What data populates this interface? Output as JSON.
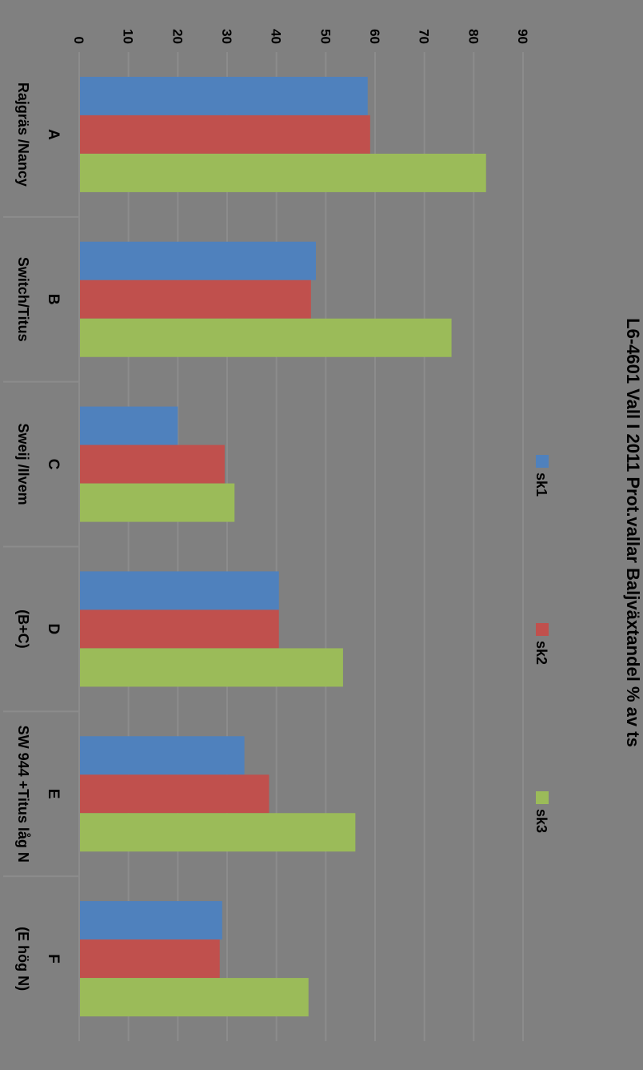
{
  "chart_data": {
    "type": "bar",
    "orientation": "rotated-90-clockwise",
    "title": "L6-4601  Vall I 2011 Prot.vallar Baljväxtandel % av ts",
    "xlabel": "",
    "ylabel": "",
    "ylim": [
      0,
      90
    ],
    "yticks": [
      0,
      10,
      20,
      30,
      40,
      50,
      60,
      70,
      80,
      90
    ],
    "grid": true,
    "legend_position": "top",
    "categories": [
      {
        "letter": "A",
        "label": "Rajgräs /Nancy"
      },
      {
        "letter": "B",
        "label": "Switch/Titus"
      },
      {
        "letter": "C",
        "label": "Sweij /Ilvem"
      },
      {
        "letter": "D",
        "label": "(B+C)"
      },
      {
        "letter": "E",
        "label": "SW 944 +Titus låg N"
      },
      {
        "letter": "F",
        "label": "(E hög N)"
      }
    ],
    "series": [
      {
        "name": "sk1",
        "color": "#4f81bd",
        "values": [
          58.5,
          48,
          20,
          40.5,
          33.5,
          29
        ]
      },
      {
        "name": "sk2",
        "color": "#c0504d",
        "values": [
          59,
          47,
          29.5,
          40.5,
          38.5,
          28.5
        ]
      },
      {
        "name": "sk3",
        "color": "#9bbb59",
        "values": [
          82.5,
          75.5,
          31.5,
          53.5,
          56,
          46.5
        ]
      }
    ]
  }
}
